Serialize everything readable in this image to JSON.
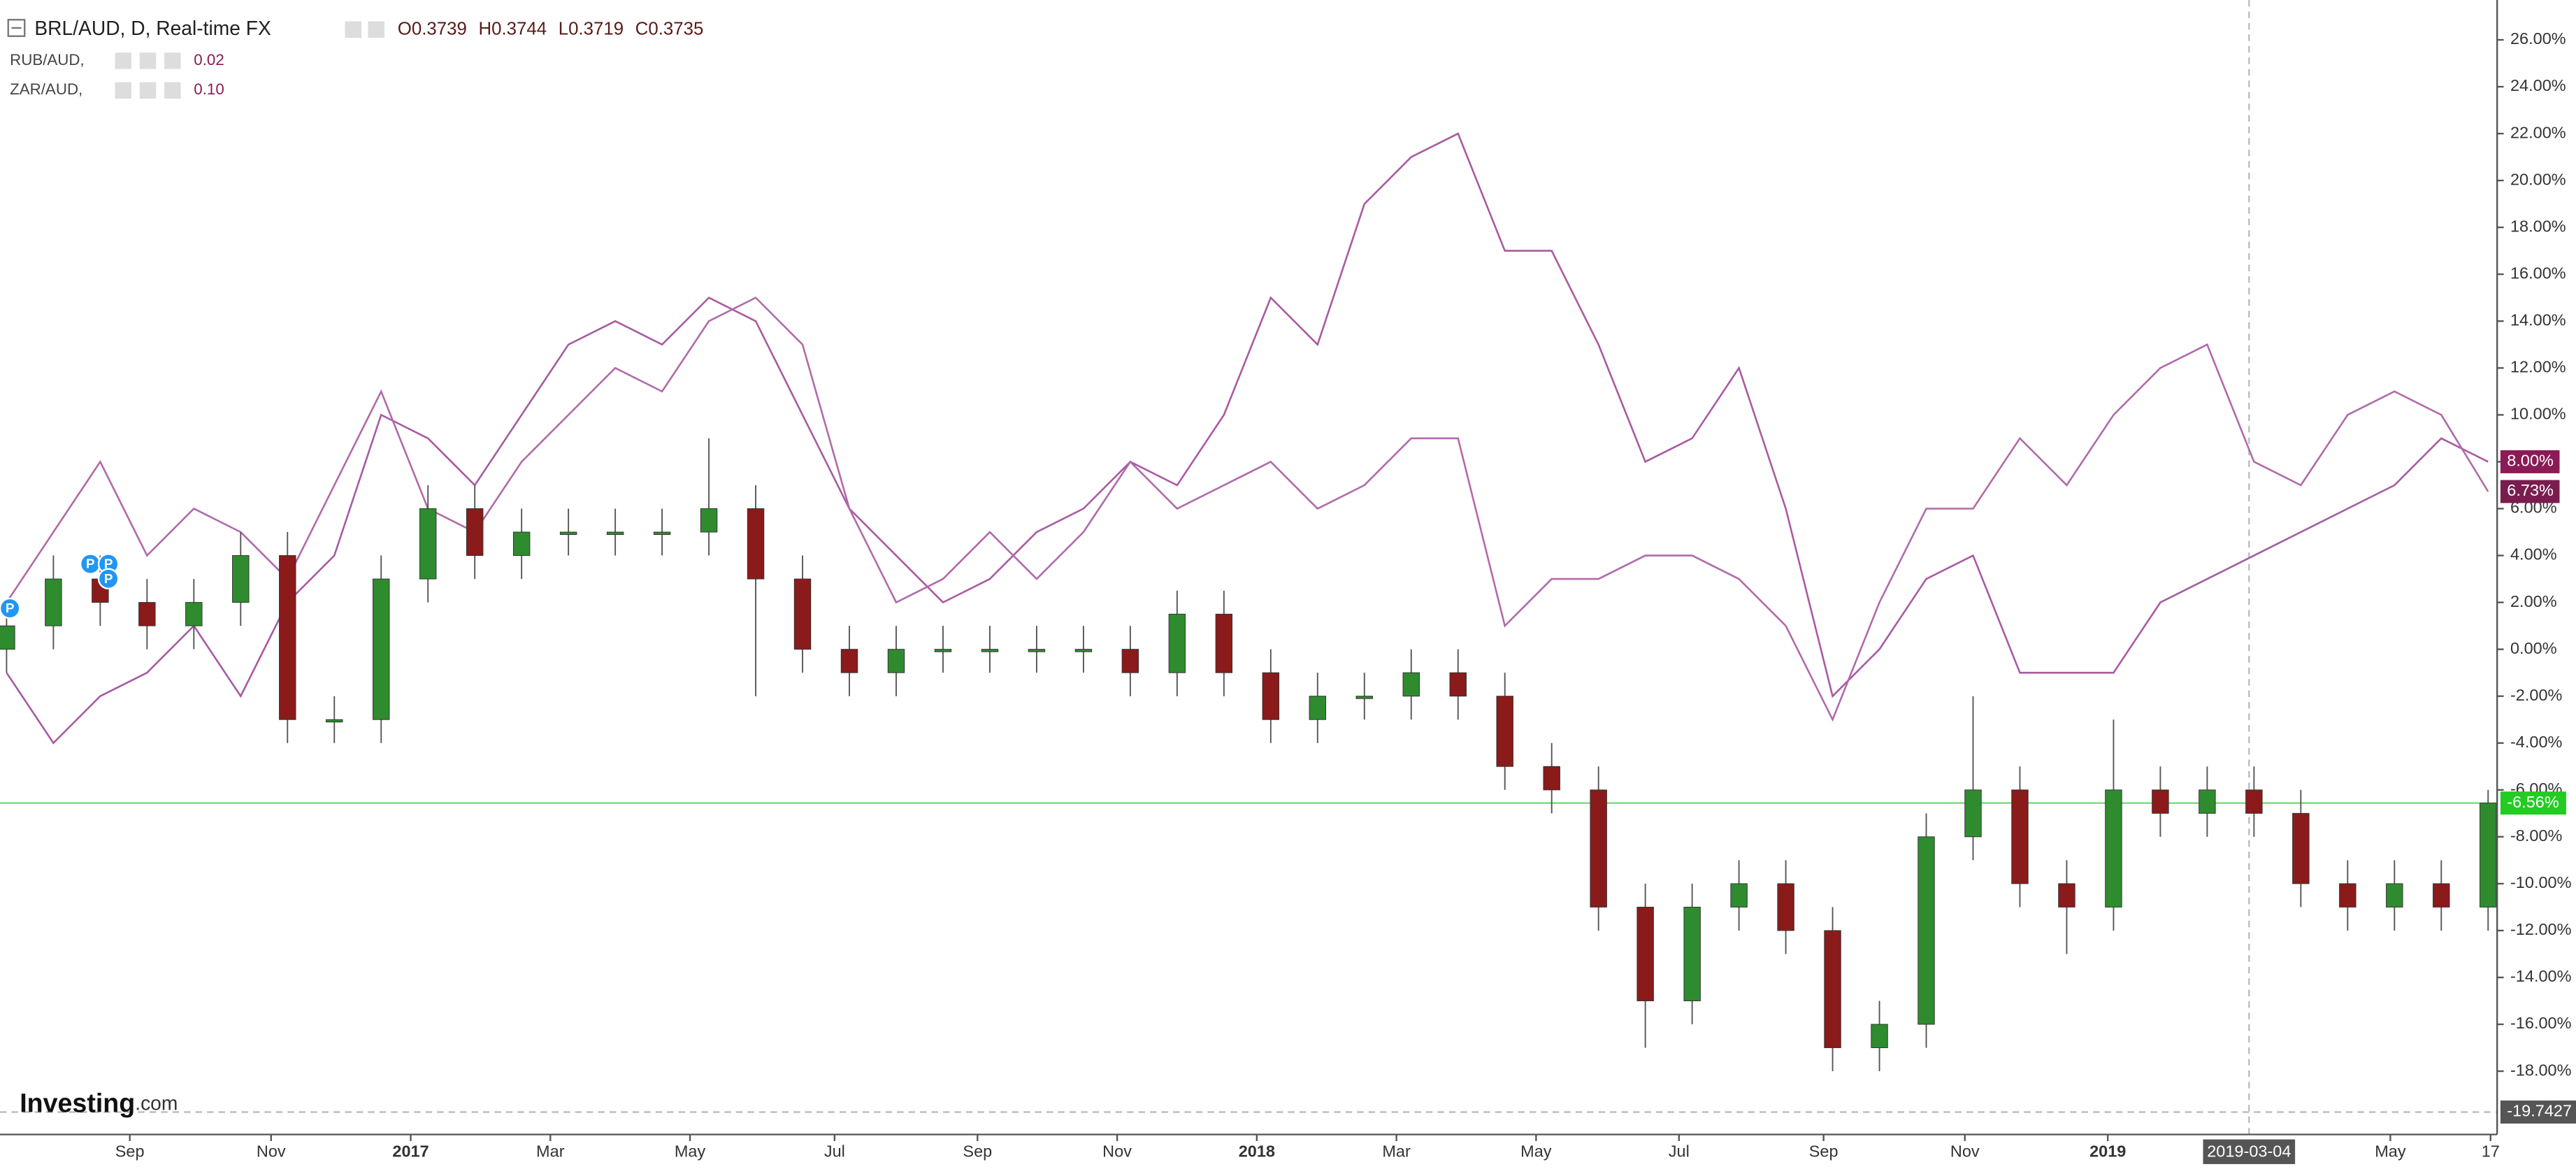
{
  "header": {
    "title": "BRL/AUD, D, Real-time FX",
    "ohlc": [
      "O0.3739",
      "H0.3744",
      "L0.3719",
      "C0.3735"
    ],
    "legend": [
      {
        "name": "RUB/AUD,",
        "value": "0.02"
      },
      {
        "name": "ZAR/AUD,",
        "value": "0.10"
      }
    ]
  },
  "logo": {
    "brand": "Investing",
    "suffix": ".com"
  },
  "markers": [
    "P",
    "P",
    "P",
    "P"
  ],
  "chart_data": {
    "type": "candlestick",
    "xticks": [
      "Sep",
      "Nov",
      "2017",
      "Mar",
      "May",
      "Jul",
      "Sep",
      "Nov",
      "2018",
      "Mar",
      "May",
      "Jul",
      "Sep",
      "Nov",
      "2019",
      "May",
      "17"
    ],
    "crosshair_label": "2019-03-04",
    "crosshair_price": -19.7427,
    "ylim": [
      -20.7,
      27.7
    ],
    "yticks": [
      {
        "value": -18,
        "label": "-18.00%"
      },
      {
        "value": -16,
        "label": "-16.00%"
      },
      {
        "value": -14,
        "label": "-14.00%"
      },
      {
        "value": -12,
        "label": "-12.00%"
      },
      {
        "value": -10,
        "label": "-10.00%"
      },
      {
        "value": -8,
        "label": "-8.00%"
      },
      {
        "value": -6,
        "label": "-6.00%"
      },
      {
        "value": -4,
        "label": "-4.00%"
      },
      {
        "value": -2,
        "label": "-2.00%"
      },
      {
        "value": 0,
        "label": "0.00%"
      },
      {
        "value": 2,
        "label": "2.00%"
      },
      {
        "value": 4,
        "label": "4.00%"
      },
      {
        "value": 6,
        "label": "6.00%"
      },
      {
        "value": 8,
        "label": "8.00%"
      },
      {
        "value": 10,
        "label": "10.00%"
      },
      {
        "value": 12,
        "label": "12.00%"
      },
      {
        "value": 14,
        "label": "14.00%"
      },
      {
        "value": 16,
        "label": "16.00%"
      },
      {
        "value": 18,
        "label": "18.00%"
      },
      {
        "value": 20,
        "label": "20.00%"
      },
      {
        "value": 22,
        "label": "22.00%"
      },
      {
        "value": 24,
        "label": "24.00%"
      },
      {
        "value": 26,
        "label": "26.00%"
      }
    ],
    "candles": {
      "name": "BRL/AUD",
      "up_color": "#2e8b2e",
      "down_color": "#8b1a1a",
      "last_color": "#22cc22",
      "last_label": "-6.56%",
      "open": [
        0,
        1,
        3,
        2,
        1,
        2,
        4,
        -3,
        -3,
        3,
        6,
        4,
        5,
        5,
        5,
        5,
        6,
        3,
        0,
        -1,
        0,
        0,
        0,
        0,
        0,
        -1,
        1.5,
        -1,
        -3,
        -2,
        -2,
        -1,
        -2,
        -5,
        -6,
        -11,
        -15,
        -11,
        -10,
        -12,
        -17,
        -16,
        -8,
        -6,
        -10,
        -11,
        -6,
        -7,
        -6,
        -7,
        -10,
        -11,
        -10,
        -11
      ],
      "high": [
        2,
        4,
        4,
        3,
        3,
        5,
        5,
        -2,
        4,
        7,
        7,
        6,
        6,
        6,
        6,
        9,
        7,
        4,
        1,
        1,
        1,
        1,
        1,
        1,
        1,
        2.5,
        2.5,
        0,
        -1,
        -1,
        0,
        0,
        -1,
        -4,
        -5,
        -10,
        -10,
        -9,
        -9,
        -11,
        -15,
        -7,
        -2,
        -5,
        -9,
        -3,
        -5,
        -5,
        -5,
        -6,
        -9,
        -9,
        -9,
        -6
      ],
      "low": [
        -1,
        0,
        1,
        0,
        0,
        1,
        -4,
        -4,
        -4,
        2,
        3,
        3,
        4,
        4,
        4,
        4,
        -2,
        -1,
        -2,
        -2,
        -1,
        -1,
        -1,
        -1,
        -2,
        -2,
        -2,
        -4,
        -4,
        -3,
        -3,
        -3,
        -6,
        -7,
        -12,
        -17,
        -16,
        -12,
        -13,
        -18,
        -18,
        -17,
        -9,
        -11,
        -13,
        -12,
        -8,
        -8,
        -8,
        -11,
        -12,
        -12,
        -12,
        -12
      ],
      "close": [
        1,
        3,
        2,
        1,
        2,
        4,
        -3,
        -3,
        3,
        6,
        4,
        5,
        5,
        5,
        5,
        6,
        3,
        0,
        -1,
        0,
        0,
        0,
        0,
        0,
        -1,
        1.5,
        -1,
        -3,
        -2,
        -2,
        -1,
        -2,
        -5,
        -6,
        -11,
        -15,
        -11,
        -10,
        -12,
        -17,
        -16,
        -8,
        -6,
        -10,
        -11,
        -6,
        -7,
        -6,
        -7,
        -10,
        -11,
        -10,
        -11,
        -6.56
      ]
    },
    "series": [
      {
        "name": "ZAR/AUD",
        "color": "#a85aa2",
        "badge_color": "#8a1b55",
        "last_label": "8.00%",
        "values": [
          -1,
          -4,
          -2,
          -1,
          1,
          -2,
          2,
          4,
          10,
          9,
          7,
          10,
          13,
          14,
          13,
          15,
          14,
          10,
          6,
          4,
          2,
          3,
          5,
          6,
          8,
          7,
          10,
          15,
          13,
          19,
          21,
          22,
          17,
          17,
          13,
          8,
          9,
          12,
          6,
          -2,
          0,
          3,
          4,
          -1,
          -1,
          -1,
          2,
          3,
          4,
          5,
          6,
          7,
          9,
          8
        ]
      },
      {
        "name": "RUB/AUD",
        "color": "#b06aaa",
        "badge_color": "#7a1d4e",
        "last_label": "6.73%",
        "values": [
          2,
          5,
          8,
          4,
          6,
          5,
          3,
          7,
          11,
          6,
          5,
          8,
          10,
          12,
          11,
          14,
          15,
          13,
          6,
          2,
          3,
          5,
          3,
          5,
          8,
          6,
          7,
          8,
          6,
          7,
          9,
          9,
          1,
          3,
          3,
          4,
          4,
          3,
          1,
          -3,
          2,
          6,
          6,
          9,
          7,
          10,
          12,
          13,
          8,
          7,
          10,
          11,
          10,
          6.73
        ]
      }
    ]
  }
}
